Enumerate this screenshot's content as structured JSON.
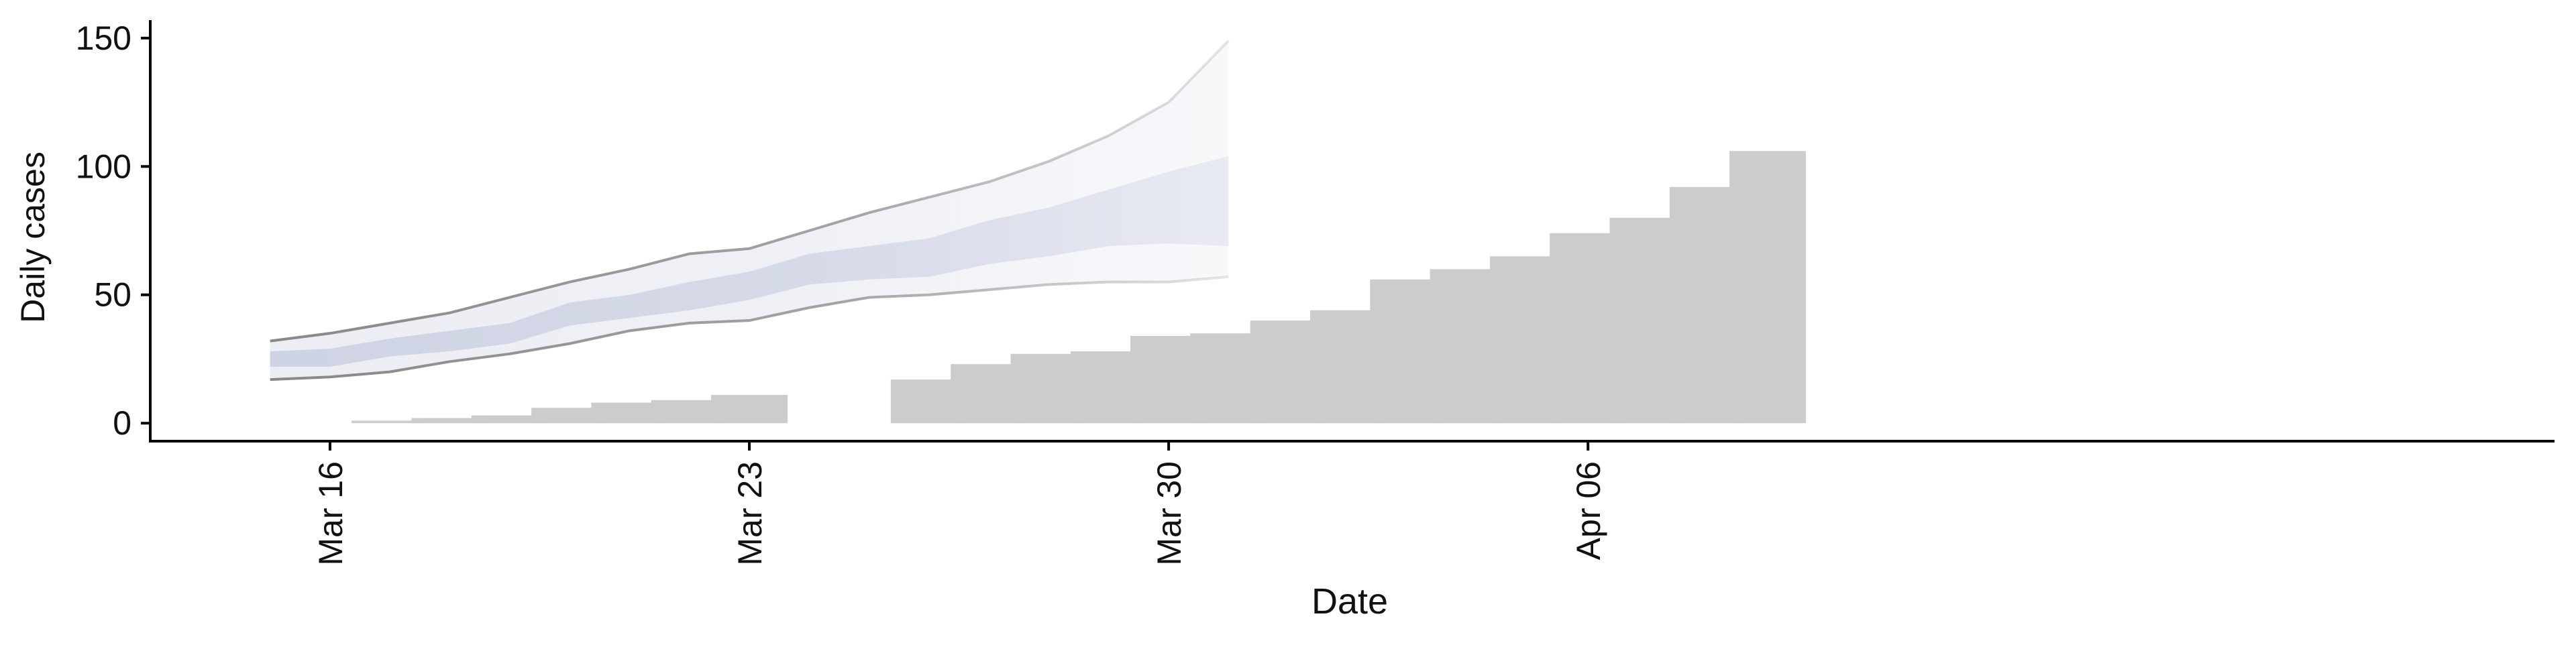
{
  "chart_data": {
    "type": "bar",
    "xlabel": "Date",
    "ylabel": "Daily cases",
    "ylim": [
      -7,
      157
    ],
    "xlim": [
      "2020-03-13",
      "2020-04-11"
    ],
    "year": 2020,
    "grid": false,
    "legend": "none",
    "y_ticks": [
      0,
      50,
      100,
      150
    ],
    "x_ticks": [
      {
        "date": "2020-03-16",
        "label": "Mar 16"
      },
      {
        "date": "2020-03-23",
        "label": "Mar 23"
      },
      {
        "date": "2020-03-30",
        "label": "Mar 30"
      },
      {
        "date": "2020-04-06",
        "label": "Apr 06"
      }
    ],
    "bars": {
      "name": "Daily cases",
      "color": "#cccccc",
      "data": [
        {
          "date": "2020-03-17",
          "value": 1
        },
        {
          "date": "2020-03-18",
          "value": 2
        },
        {
          "date": "2020-03-19",
          "value": 3
        },
        {
          "date": "2020-03-20",
          "value": 6
        },
        {
          "date": "2020-03-21",
          "value": 8
        },
        {
          "date": "2020-03-22",
          "value": 9
        },
        {
          "date": "2020-03-23",
          "value": 11
        },
        {
          "date": "2020-03-26",
          "value": 17
        },
        {
          "date": "2020-03-27",
          "value": 23
        },
        {
          "date": "2020-03-28",
          "value": 27
        },
        {
          "date": "2020-03-29",
          "value": 28
        },
        {
          "date": "2020-03-30",
          "value": 34
        },
        {
          "date": "2020-03-31",
          "value": 35
        },
        {
          "date": "2020-04-01",
          "value": 40
        },
        {
          "date": "2020-04-02",
          "value": 44
        },
        {
          "date": "2020-04-03",
          "value": 56
        },
        {
          "date": "2020-04-04",
          "value": 60
        },
        {
          "date": "2020-04-05",
          "value": 65
        },
        {
          "date": "2020-04-06",
          "value": 74
        },
        {
          "date": "2020-04-07",
          "value": 80
        },
        {
          "date": "2020-04-08",
          "value": 92
        },
        {
          "date": "2020-04-09",
          "value": 106
        }
      ]
    },
    "forecast": {
      "dates": [
        "2020-03-15",
        "2020-03-16",
        "2020-03-17",
        "2020-03-18",
        "2020-03-19",
        "2020-03-20",
        "2020-03-21",
        "2020-03-22",
        "2020-03-23",
        "2020-03-24",
        "2020-03-25",
        "2020-03-26",
        "2020-03-27",
        "2020-03-28",
        "2020-03-29",
        "2020-03-30",
        "2020-03-31"
      ],
      "outer_low": [
        17,
        18,
        20,
        24,
        27,
        31,
        36,
        39,
        40,
        45,
        49,
        50,
        52,
        54,
        55,
        55,
        57
      ],
      "outer_high": [
        32,
        35,
        39,
        43,
        49,
        55,
        60,
        66,
        68,
        75,
        82,
        88,
        94,
        102,
        112,
        125,
        149
      ],
      "inner_low": [
        22,
        22,
        26,
        28,
        31,
        38,
        41,
        44,
        48,
        54,
        56,
        57,
        62,
        65,
        69,
        70,
        69
      ],
      "inner_high": [
        28,
        29,
        33,
        36,
        39,
        47,
        50,
        55,
        59,
        66,
        69,
        72,
        79,
        84,
        91,
        98,
        104
      ],
      "inner_color": "#cdd2e3",
      "outer_color": "#e6e8f0",
      "line_color": "#888888"
    }
  }
}
